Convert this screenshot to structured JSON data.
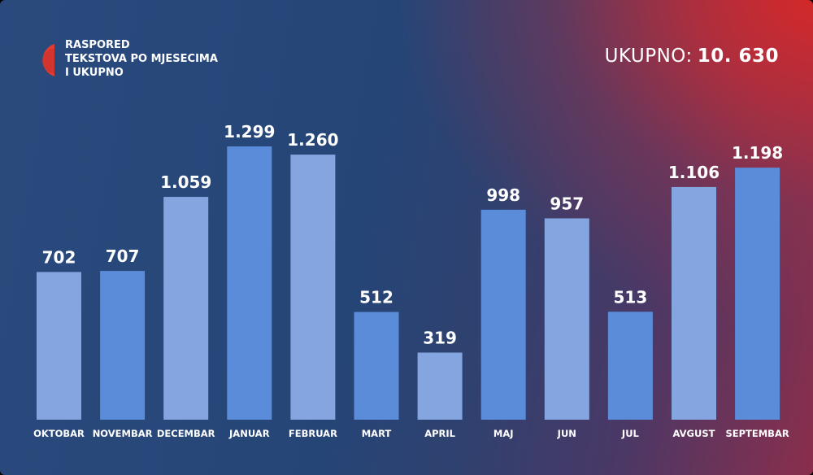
{
  "header": {
    "title_lines": [
      "RASPORED",
      "TEKSTOVA PO MJESECIMA",
      "I UKUPNO"
    ],
    "total_label": "UKUPNO:",
    "total_value": "10. 630"
  },
  "colors": {
    "bar_light": "#84a5e0",
    "bar_dark": "#5b8cd9",
    "logo_red": "#e23b32",
    "logo_dark": "#b02a2a",
    "text": "#ffffff"
  },
  "icons": {
    "logo": "half-circle-logo-icon"
  },
  "chart_data": {
    "type": "bar",
    "title": "RASPORED TEKSTOVA PO MJESECIMA I UKUPNO",
    "categories": [
      "OKTOBAR",
      "NOVEMBAR",
      "DECEMBAR",
      "JANUAR",
      "FEBRUAR",
      "MART",
      "APRIL",
      "MAJ",
      "JUN",
      "JUL",
      "AVGUST",
      "SEPTEMBAR"
    ],
    "values": [
      702,
      707,
      1059,
      1299,
      1260,
      512,
      319,
      998,
      957,
      513,
      1106,
      1198
    ],
    "value_labels": [
      "702",
      "707",
      "1.059",
      "1.299",
      "1.260",
      "512",
      "319",
      "998",
      "957",
      "513",
      "1.106",
      "1.198"
    ],
    "bar_shades": [
      "light",
      "dark",
      "light",
      "dark",
      "light",
      "dark",
      "light",
      "dark",
      "light",
      "dark",
      "light",
      "dark"
    ],
    "xlabel": "",
    "ylabel": "",
    "ylim": [
      0,
      1299
    ],
    "grid": false,
    "legend": "none"
  }
}
